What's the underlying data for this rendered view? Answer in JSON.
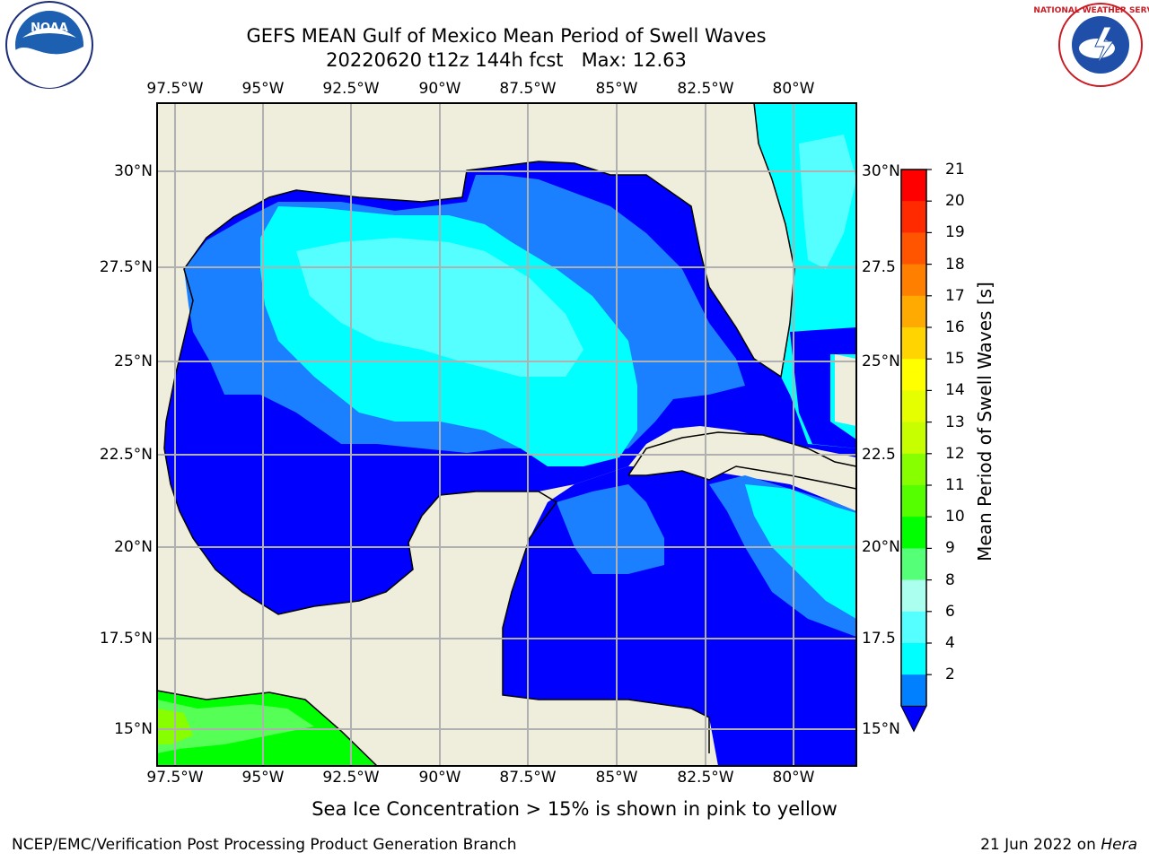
{
  "title": {
    "line1": "GEFS MEAN Gulf of Mexico Mean Period of Swell Waves",
    "line2": "20220620 t12z 144h fcst   Max: 12.63"
  },
  "logos": {
    "left": "NOAA",
    "right": "NATIONAL WEATHER SERVICE"
  },
  "map": {
    "lon_ticks": [
      "97.5°W",
      "95°W",
      "92.5°W",
      "90°W",
      "87.5°W",
      "85°W",
      "82.5°W",
      "80°W"
    ],
    "lat_ticks_left": [
      "30°N",
      "27.5°N",
      "25°N",
      "22.5°N",
      "20°N",
      "17.5°N",
      "15°N"
    ],
    "lat_ticks_right": [
      "30°N",
      "27.5",
      "25°N",
      "22.5",
      "20°N",
      "17.5",
      "15°N"
    ],
    "colors": {
      "land": "#efeedc",
      "ocean_low": "#0000ff",
      "ocean_mid": "#1a80ff",
      "ocean_hi": "#00ffff",
      "ocean_hi2": "#55ffff",
      "green": "#00ff00",
      "green2": "#55ff55",
      "yellowgreen": "#88ff00"
    }
  },
  "colorbar": {
    "title": "Mean Period of Swell Waves [s]",
    "labels": [
      "21",
      "20",
      "19",
      "18",
      "17",
      "16",
      "15",
      "14",
      "13",
      "12",
      "11",
      "10",
      "9",
      "8",
      "6",
      "4",
      "2"
    ],
    "colors": [
      "#ff0000",
      "#ff2a00",
      "#ff5500",
      "#ff8000",
      "#ffaa00",
      "#ffd400",
      "#ffff00",
      "#e6ff00",
      "#c8ff00",
      "#88ff00",
      "#55ff00",
      "#00ff00",
      "#55ff77",
      "#aaffee",
      "#55ffff",
      "#00ffff",
      "#0080ff"
    ],
    "extend_color": "#0000ff"
  },
  "footer": {
    "note": "Sea Ice Concentration > 15% is shown in pink to yellow",
    "credit_left": "NCEP/EMC/Verification Post Processing Product Generation Branch",
    "credit_right_prefix": "21 Jun 2022 on ",
    "credit_right_host": "Hera"
  }
}
